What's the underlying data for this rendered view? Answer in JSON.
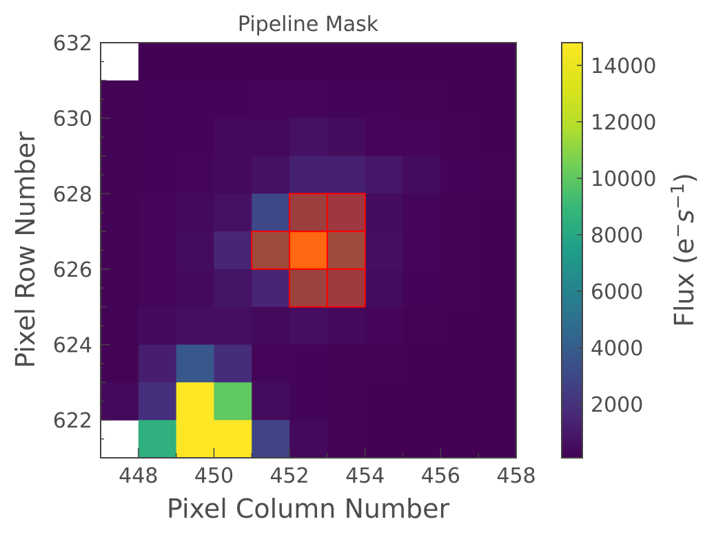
{
  "chart_data": {
    "type": "heatmap",
    "title": "Pipeline Mask",
    "xlabel": "Pixel Column Number",
    "ylabel": "Pixel Row Number",
    "colorbar_label": "Flux (e⁻s⁻¹)",
    "colorbar_label_parts": {
      "base": "Flux (e",
      "sup1": "−",
      "mid": "s",
      "sup2": "−1",
      "end": ")"
    },
    "colormap": "viridis",
    "xlim": [
      447,
      458
    ],
    "ylim": [
      621,
      632
    ],
    "xticks": [
      "448",
      "450",
      "452",
      "454",
      "456",
      "458"
    ],
    "yticks": [
      "622",
      "624",
      "626",
      "628",
      "630",
      "632"
    ],
    "colorbar_ticks": [
      "2000",
      "4000",
      "6000",
      "8000",
      "10000",
      "12000",
      "14000"
    ],
    "colorbar_range": [
      100,
      14800
    ],
    "x_columns": [
      447,
      448,
      449,
      450,
      451,
      452,
      453,
      454,
      455,
      456,
      457
    ],
    "y_rows_top_to_bottom": [
      631,
      630,
      629,
      628,
      627,
      626,
      625,
      624,
      623,
      622,
      621
    ],
    "flux": [
      [
        null,
        150,
        150,
        150,
        150,
        150,
        150,
        150,
        150,
        150,
        150
      ],
      [
        200,
        250,
        250,
        250,
        300,
        300,
        250,
        250,
        200,
        150,
        150
      ],
      [
        200,
        250,
        250,
        350,
        400,
        700,
        500,
        300,
        300,
        200,
        150
      ],
      [
        200,
        250,
        300,
        450,
        700,
        1300,
        1300,
        900,
        500,
        250,
        200
      ],
      [
        200,
        300,
        400,
        700,
        3000,
        6500,
        5500,
        500,
        300,
        200,
        150
      ],
      [
        200,
        300,
        500,
        1500,
        8000,
        14800,
        8000,
        600,
        300,
        200,
        150
      ],
      [
        200,
        300,
        450,
        800,
        1500,
        7000,
        6000,
        500,
        250,
        200,
        150
      ],
      [
        200,
        450,
        600,
        600,
        400,
        600,
        400,
        300,
        200,
        150,
        150
      ],
      [
        200,
        1200,
        3700,
        1800,
        300,
        250,
        200,
        200,
        150,
        150,
        150
      ],
      [
        400,
        1900,
        14800,
        10000,
        500,
        250,
        200,
        150,
        150,
        150,
        150
      ],
      [
        null,
        8500,
        14800,
        14800,
        2800,
        400,
        200,
        150,
        150,
        150,
        150
      ]
    ],
    "pipeline_mask_pixels": [
      [
        452,
        627
      ],
      [
        453,
        627
      ],
      [
        451,
        626
      ],
      [
        452,
        626
      ],
      [
        453,
        626
      ],
      [
        452,
        625
      ],
      [
        453,
        625
      ]
    ],
    "mask_overlay_color": "#ff0000",
    "grid": false
  }
}
